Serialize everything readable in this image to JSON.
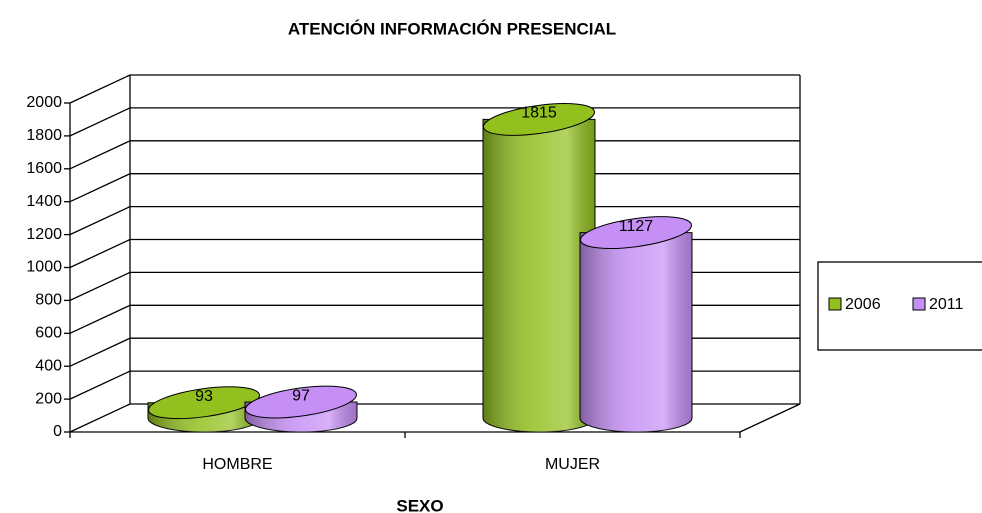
{
  "chart_data": {
    "type": "bar3d-cylinder",
    "title": "ATENCIÓN INFORMACIÓN PRESENCIAL",
    "x_label": "SEXO",
    "categories": [
      "HOMBRE",
      "MUJER"
    ],
    "series": [
      {
        "name": "2006",
        "color": "#92c01f",
        "values": [
          93,
          1815
        ]
      },
      {
        "name": "2011",
        "color": "#c58ff5",
        "values": [
          97,
          1127
        ]
      }
    ],
    "ylim": [
      0,
      2000
    ],
    "yticks": [
      0,
      200,
      400,
      600,
      800,
      1000,
      1200,
      1400,
      1600,
      1800,
      2000
    ],
    "grid": true,
    "legend": "right"
  }
}
